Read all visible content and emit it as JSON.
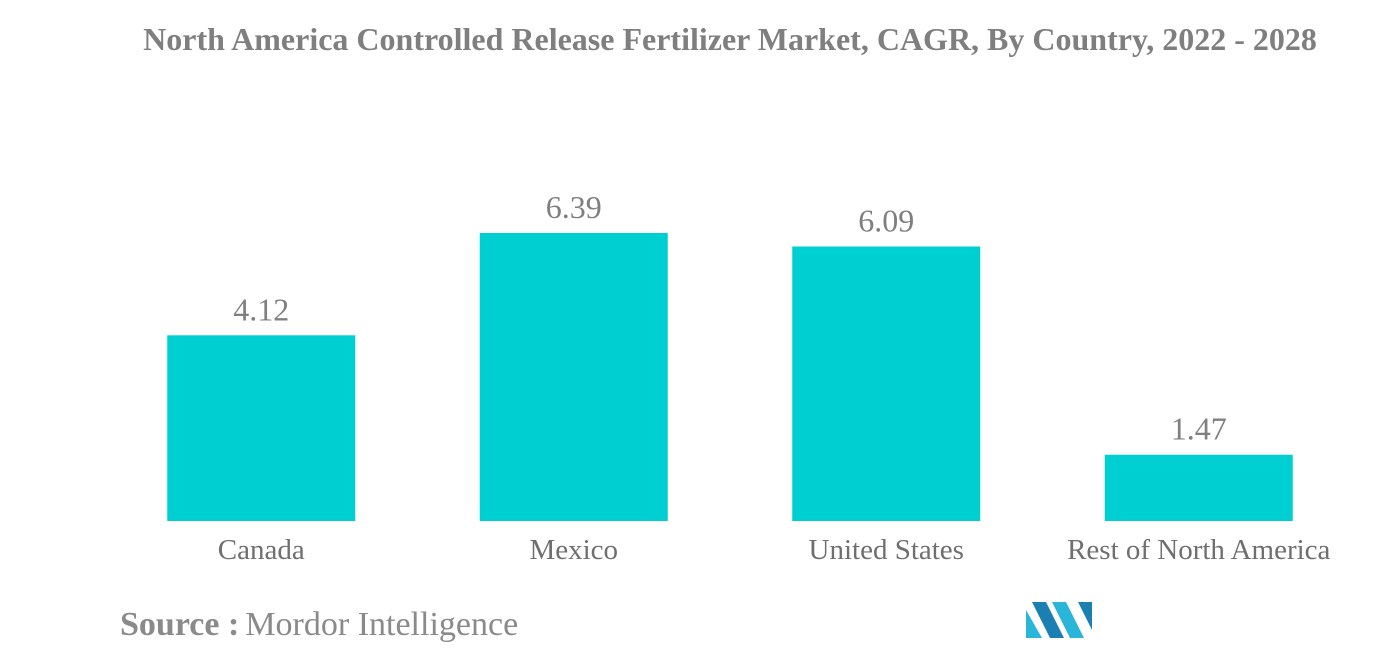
{
  "chart_data": {
    "type": "bar",
    "title": "North America Controlled Release Fertilizer Market, CAGR, By Country, 2022 - 2028",
    "categories": [
      "Canada",
      "Mexico",
      "United States",
      "Rest of North America"
    ],
    "values": [
      4.12,
      6.39,
      6.09,
      1.47
    ],
    "value_labels": [
      "4.12",
      "6.39",
      "6.09",
      "1.47"
    ],
    "xlabel": "",
    "ylabel": "",
    "ylim": [
      0,
      6.39
    ],
    "grid": false,
    "bar_color": "#00cfd1"
  },
  "source": {
    "label": "Source :",
    "name": "Mordor Intelligence"
  },
  "logo": {
    "icon": "mordor-intelligence-logo-icon",
    "colors": [
      "#2ab5d9",
      "#1c7fb1"
    ]
  }
}
